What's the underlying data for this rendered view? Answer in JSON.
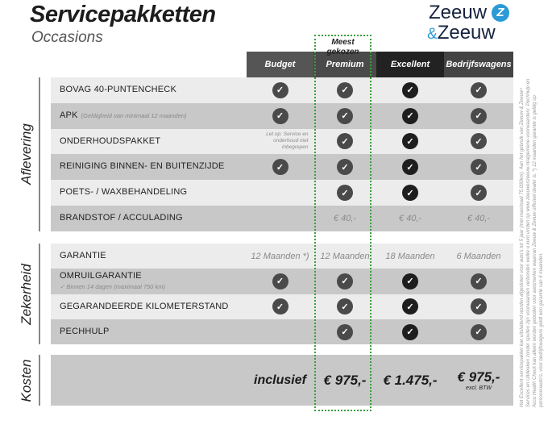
{
  "title": "Servicepakketten",
  "subtitle": "Occasions",
  "logo": {
    "line1": "Zeeuw",
    "amp": "&",
    "line2": "Zeeuw",
    "mark": "Z"
  },
  "popular_label": "Meest gekozen",
  "colors": {
    "header_budget": "#555555",
    "header_premium": "#4a4a4a",
    "header_excellent": "#222222",
    "header_bedrijf": "#444444",
    "row_light": "#ececec",
    "row_dark": "#c8c8c8",
    "popular_border": "#3aa03a"
  },
  "columns": [
    "Budget",
    "Premium",
    "Excellent",
    "Bedrijfswagens"
  ],
  "sections": [
    {
      "name": "Aflevering",
      "rows": [
        {
          "label": "BOVAG 40-PUNTENCHECK",
          "note": "",
          "cells": [
            "check",
            "check",
            "check",
            "check"
          ]
        },
        {
          "label": "APK",
          "note": "(Geldigheid van minimaal 12 maanden)",
          "cells": [
            "check",
            "check",
            "check",
            "check"
          ]
        },
        {
          "label": "ONDERHOUDSPAKKET",
          "note": "",
          "cells": [
            "Let op: Service en onderhoud niet inbegrepen",
            "check",
            "check",
            "check"
          ]
        },
        {
          "label": "REINIGING BINNEN- EN BUITENZIJDE",
          "note": "",
          "cells": [
            "check",
            "check",
            "check",
            "check"
          ]
        },
        {
          "label": "POETS- / WAXBEHANDELING",
          "note": "",
          "cells": [
            "",
            "check",
            "check",
            "check"
          ]
        },
        {
          "label": "BRANDSTOF / ACCULADING",
          "note": "",
          "cells": [
            "",
            "€ 40,-",
            "€ 40,-",
            "€ 40,-"
          ]
        }
      ]
    },
    {
      "name": "Zekerheid",
      "rows": [
        {
          "label": "GARANTIE",
          "note": "",
          "cells": [
            "12 Maanden *)",
            "12 Maanden",
            "18 Maanden",
            "6 Maanden"
          ]
        },
        {
          "label": "OMRUILGARANTIE",
          "sub": "✓  Binnen 14 dagen (maximaal 750 km)",
          "cells": [
            "check",
            "check",
            "check",
            "check"
          ]
        },
        {
          "label": "GEGARANDEERDE KILOMETERSTAND",
          "note": "",
          "cells": [
            "check",
            "check",
            "check",
            "check"
          ]
        },
        {
          "label": "PECHHULP",
          "note": "",
          "cells": [
            "",
            "check",
            "check",
            "check"
          ]
        }
      ]
    },
    {
      "name": "Kosten",
      "prices": [
        "inclusief",
        "€ 975,-",
        "€ 1.475,-",
        "€ 975,-"
      ],
      "price_note": "excl. BTW"
    }
  ],
  "footnote": "Het Excellent-servicepakket kan uitsluitend worden afgesloten voor auto's tot 5 jaar (met maximaal 75.000km). Aan het gebruik van Zeeuw & Zeeuw+ Services en Uitdeuken zonder spuiten zijn voorwaarden verbonden welke u kunt vinden op www.zeeuwenzeeuw.nl/algemene-voorwaarden/. Pechhulp en Accu Health Check kan alleen worden geboden voor automerken waarvan Zeeuw & Zeeuw officieel dealer is. *) 12 maanden garantie is geldig op personenauto's, voor bedrijfswagens geldt een garantie van 6 maanden."
}
